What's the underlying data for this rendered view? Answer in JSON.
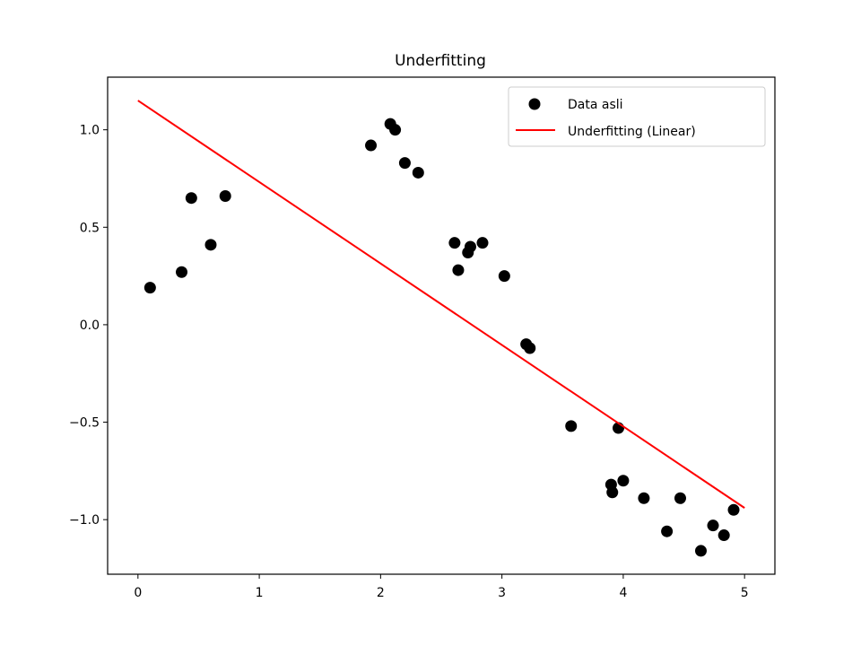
{
  "chart_data": {
    "type": "scatter",
    "title": "Underfitting",
    "xlabel": "",
    "ylabel": "",
    "xlim": [
      -0.25,
      5.25
    ],
    "ylim": [
      -1.28,
      1.27
    ],
    "xticks": [
      0,
      1,
      2,
      3,
      4,
      5
    ],
    "xtick_labels": [
      "0",
      "1",
      "2",
      "3",
      "4",
      "5"
    ],
    "yticks": [
      1.0,
      0.5,
      0.0,
      -0.5,
      -1.0
    ],
    "ytick_labels": [
      "1.0",
      "0.5",
      "0.0",
      "−0.5",
      "−1.0"
    ],
    "grid": false,
    "legend_position": "top-right",
    "series": [
      {
        "name": "Data asli",
        "kind": "scatter",
        "color": "#000000",
        "points": [
          [
            0.1,
            0.19
          ],
          [
            0.36,
            0.27
          ],
          [
            0.44,
            0.65
          ],
          [
            0.6,
            0.41
          ],
          [
            0.72,
            0.66
          ],
          [
            1.92,
            0.92
          ],
          [
            2.08,
            1.03
          ],
          [
            2.12,
            1.0
          ],
          [
            2.2,
            0.83
          ],
          [
            2.31,
            0.78
          ],
          [
            2.61,
            0.42
          ],
          [
            2.64,
            0.28
          ],
          [
            2.72,
            0.37
          ],
          [
            2.74,
            0.4
          ],
          [
            2.84,
            0.42
          ],
          [
            3.02,
            0.25
          ],
          [
            3.2,
            -0.1
          ],
          [
            3.23,
            -0.12
          ],
          [
            3.57,
            -0.52
          ],
          [
            3.9,
            -0.82
          ],
          [
            3.91,
            -0.86
          ],
          [
            3.96,
            -0.53
          ],
          [
            4.0,
            -0.8
          ],
          [
            4.17,
            -0.89
          ],
          [
            4.36,
            -1.06
          ],
          [
            4.47,
            -0.89
          ],
          [
            4.64,
            -1.16
          ],
          [
            4.74,
            -1.03
          ],
          [
            4.83,
            -1.08
          ],
          [
            4.91,
            -0.95
          ]
        ]
      },
      {
        "name": "Underfitting (Linear)",
        "kind": "line",
        "color": "#ff0000",
        "x": [
          0,
          5
        ],
        "y": [
          1.15,
          -0.94
        ]
      }
    ]
  }
}
